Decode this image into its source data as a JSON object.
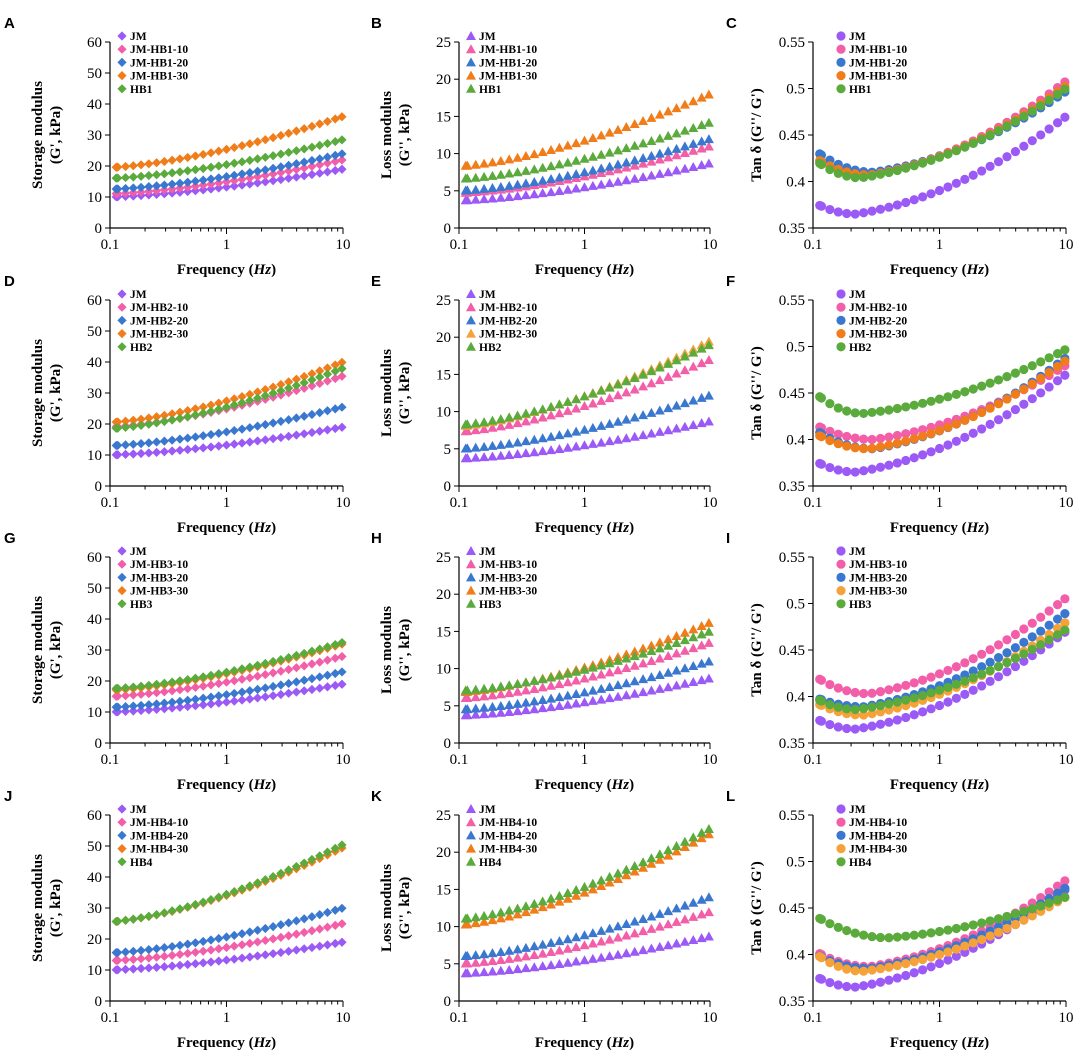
{
  "colors": {
    "JM": "#9b59f5",
    "S10": "#f25ea8",
    "S20": "#3a78d0",
    "S30": "#f07d1a",
    "HB": "#5aaa3c",
    "S30_light": "#f5a23a"
  },
  "chart_data": [
    {
      "panel": "A",
      "type": "scatter",
      "marker": "diamond",
      "xscale": "log",
      "xlim": [
        0.1,
        10
      ],
      "ylim": [
        0,
        60
      ],
      "yticks": [
        0,
        10,
        20,
        30,
        40,
        50,
        60
      ],
      "xticks": [
        "0.1",
        "1",
        "10"
      ],
      "xlabel": "Frequency (Hz)",
      "ylabel": [
        "Storage modulus",
        "(G', kPa)"
      ],
      "legend": [
        "JM",
        "JM-HB1-10",
        "JM-HB1-20",
        "JM-HB1-30",
        "HB1"
      ],
      "legend_position": "top-left",
      "series": [
        {
          "name": "JM",
          "color_key": "JM",
          "y0": 10,
          "y1": 19,
          "dip": 0,
          "minx": 0.3
        },
        {
          "name": "JM-HB1-10",
          "color_key": "S10",
          "y0": 11,
          "y1": 22,
          "dip": 0,
          "minx": 0.3
        },
        {
          "name": "JM-HB1-20",
          "color_key": "S20",
          "y0": 12.5,
          "y1": 24,
          "dip": 0,
          "minx": 0.3
        },
        {
          "name": "JM-HB1-30",
          "color_key": "S30",
          "y0": 19.5,
          "y1": 36,
          "dip": 0,
          "minx": 0.3
        },
        {
          "name": "HB1",
          "color_key": "HB",
          "y0": 16,
          "y1": 28.5,
          "dip": 0,
          "minx": 0.3
        }
      ]
    },
    {
      "panel": "B",
      "type": "scatter",
      "marker": "triangle",
      "xscale": "log",
      "xlim": [
        0.1,
        10
      ],
      "ylim": [
        0,
        25
      ],
      "yticks": [
        0,
        5,
        10,
        15,
        20,
        25
      ],
      "xticks": [
        "0.1",
        "1",
        "10"
      ],
      "xlabel": "Frequency (Hz)",
      "ylabel": [
        "Loss modulus",
        "(G'', kPa)"
      ],
      "legend": [
        "JM",
        "JM-HB1-10",
        "JM-HB1-20",
        "JM-HB1-30",
        "HB1"
      ],
      "legend_position": "top-left",
      "series": [
        {
          "name": "JM",
          "color_key": "JM",
          "y0": 3.7,
          "y1": 8.7,
          "dip": 0,
          "minx": 0.3
        },
        {
          "name": "JM-HB1-10",
          "color_key": "S10",
          "y0": 4.7,
          "y1": 11,
          "dip": 0,
          "minx": 0.3
        },
        {
          "name": "JM-HB1-20",
          "color_key": "S20",
          "y0": 5,
          "y1": 12,
          "dip": 0,
          "minx": 0.3
        },
        {
          "name": "JM-HB1-30",
          "color_key": "S30",
          "y0": 8.3,
          "y1": 18,
          "dip": 0,
          "minx": 0.3
        },
        {
          "name": "HB1",
          "color_key": "HB",
          "y0": 6.6,
          "y1": 14.2,
          "dip": 0,
          "minx": 0.3
        }
      ]
    },
    {
      "panel": "C",
      "type": "scatter",
      "marker": "circle",
      "xscale": "log",
      "xlim": [
        0.1,
        10
      ],
      "ylim": [
        0.35,
        0.55
      ],
      "yticks": [
        0.35,
        0.4,
        0.45,
        0.5,
        0.55
      ],
      "ytick_labels": [
        "0.35",
        "0.4",
        "0.45",
        "0.5",
        "0.55"
      ],
      "xticks": [
        "0.1",
        "1",
        "10"
      ],
      "xlabel": "Frequency (Hz)",
      "ylabel": [
        "Tan δ (G''/ G')"
      ],
      "legend": [
        "JM",
        "JM-HB1-10",
        "JM-HB1-20",
        "JM-HB1-30",
        "HB1"
      ],
      "legend_position": "top-left",
      "series": [
        {
          "name": "JM",
          "color_key": "JM",
          "y0": 0.378,
          "y1": 0.47,
          "dip": 0.365,
          "minx": 0.22
        },
        {
          "name": "JM-HB1-10",
          "color_key": "S10",
          "y0": 0.425,
          "y1": 0.508,
          "dip": 0.408,
          "minx": 0.3
        },
        {
          "name": "JM-HB1-20",
          "color_key": "S20",
          "y0": 0.435,
          "y1": 0.497,
          "dip": 0.41,
          "minx": 0.3
        },
        {
          "name": "JM-HB1-30",
          "color_key": "S30",
          "y0": 0.427,
          "y1": 0.503,
          "dip": 0.407,
          "minx": 0.28
        },
        {
          "name": "HB1",
          "color_key": "HB",
          "y0": 0.425,
          "y1": 0.5,
          "dip": 0.404,
          "minx": 0.24
        }
      ]
    },
    {
      "panel": "D",
      "type": "scatter",
      "marker": "diamond",
      "xscale": "log",
      "xlim": [
        0.1,
        10
      ],
      "ylim": [
        0,
        60
      ],
      "yticks": [
        0,
        10,
        20,
        30,
        40,
        50,
        60
      ],
      "xticks": [
        "0.1",
        "1",
        "10"
      ],
      "xlabel": "Frequency (Hz)",
      "ylabel": [
        "Storage modulus",
        "(G', kPa)"
      ],
      "legend": [
        "JM",
        "JM-HB2-10",
        "JM-HB2-20",
        "JM-HB2-30",
        "HB2"
      ],
      "legend_position": "top-left",
      "series": [
        {
          "name": "JM",
          "color_key": "JM",
          "y0": 10,
          "y1": 19,
          "dip": 0,
          "minx": 0.3
        },
        {
          "name": "JM-HB2-10",
          "color_key": "S10",
          "y0": 19,
          "y1": 35.5,
          "dip": 0,
          "minx": 0.3
        },
        {
          "name": "JM-HB2-20",
          "color_key": "S20",
          "y0": 13,
          "y1": 25.5,
          "dip": 0,
          "minx": 0.3
        },
        {
          "name": "JM-HB2-30",
          "color_key": "S30",
          "y0": 20.5,
          "y1": 40,
          "dip": 0,
          "minx": 0.3
        },
        {
          "name": "HB2",
          "color_key": "HB",
          "y0": 18.5,
          "y1": 38,
          "dip": 0,
          "minx": 0.3
        }
      ]
    },
    {
      "panel": "E",
      "type": "scatter",
      "marker": "triangle",
      "xscale": "log",
      "xlim": [
        0.1,
        10
      ],
      "ylim": [
        0,
        25
      ],
      "yticks": [
        0,
        5,
        10,
        15,
        20,
        25
      ],
      "xticks": [
        "0.1",
        "1",
        "10"
      ],
      "xlabel": "Frequency (Hz)",
      "ylabel": [
        "Loss modulus",
        "(G'', kPa)"
      ],
      "legend": [
        "JM",
        "JM-HB2-10",
        "JM-HB2-20",
        "JM-HB2-30",
        "HB2"
      ],
      "legend_position": "top-left",
      "series": [
        {
          "name": "JM",
          "color_key": "JM",
          "y0": 3.7,
          "y1": 8.7,
          "dip": 0,
          "minx": 0.3
        },
        {
          "name": "JM-HB2-10",
          "color_key": "S10",
          "y0": 7.3,
          "y1": 17,
          "dip": 0,
          "minx": 0.3
        },
        {
          "name": "JM-HB2-20",
          "color_key": "S20",
          "y0": 5,
          "y1": 12.2,
          "dip": 0,
          "minx": 0.3
        },
        {
          "name": "JM-HB2-30",
          "color_key": "S30_light",
          "y0": 8,
          "y1": 19.5,
          "dip": 0,
          "minx": 0.3
        },
        {
          "name": "HB2",
          "color_key": "HB",
          "y0": 8.2,
          "y1": 19,
          "dip": 0,
          "minx": 0.3
        }
      ]
    },
    {
      "panel": "F",
      "type": "scatter",
      "marker": "circle",
      "xscale": "log",
      "xlim": [
        0.1,
        10
      ],
      "ylim": [
        0.35,
        0.55
      ],
      "yticks": [
        0.35,
        0.4,
        0.45,
        0.5,
        0.55
      ],
      "ytick_labels": [
        "0.35",
        "0.4",
        "0.45",
        "0.5",
        "0.55"
      ],
      "xticks": [
        "0.1",
        "1",
        "10"
      ],
      "xlabel": "Frequency (Hz)",
      "ylabel": [
        "Tan δ (G''/ G')"
      ],
      "legend": [
        "JM",
        "JM-HB2-10",
        "JM-HB2-20",
        "JM-HB2-30",
        "HB2"
      ],
      "legend_position": "top-left",
      "series": [
        {
          "name": "JM",
          "color_key": "JM",
          "y0": 0.378,
          "y1": 0.47,
          "dip": 0.365,
          "minx": 0.22
        },
        {
          "name": "JM-HB2-10",
          "color_key": "S10",
          "y0": 0.417,
          "y1": 0.48,
          "dip": 0.4,
          "minx": 0.3
        },
        {
          "name": "JM-HB2-20",
          "color_key": "S20",
          "y0": 0.412,
          "y1": 0.488,
          "dip": 0.39,
          "minx": 0.3
        },
        {
          "name": "JM-HB2-30",
          "color_key": "S30",
          "y0": 0.408,
          "y1": 0.485,
          "dip": 0.39,
          "minx": 0.28
        },
        {
          "name": "HB2",
          "color_key": "HB",
          "y0": 0.452,
          "y1": 0.497,
          "dip": 0.428,
          "minx": 0.25
        }
      ]
    },
    {
      "panel": "G",
      "type": "scatter",
      "marker": "diamond",
      "xscale": "log",
      "xlim": [
        0.1,
        10
      ],
      "ylim": [
        0,
        60
      ],
      "yticks": [
        0,
        10,
        20,
        30,
        40,
        50,
        60
      ],
      "xticks": [
        "0.1",
        "1",
        "10"
      ],
      "xlabel": "Frequency (Hz)",
      "ylabel": [
        "Storage modulus",
        "(G', kPa)"
      ],
      "legend": [
        "JM",
        "JM-HB3-10",
        "JM-HB3-20",
        "JM-HB3-30",
        "HB3"
      ],
      "legend_position": "top-left",
      "series": [
        {
          "name": "JM",
          "color_key": "JM",
          "y0": 10,
          "y1": 19,
          "dip": 0,
          "minx": 0.3
        },
        {
          "name": "JM-HB3-10",
          "color_key": "S10",
          "y0": 15,
          "y1": 28,
          "dip": 0,
          "minx": 0.3
        },
        {
          "name": "JM-HB3-20",
          "color_key": "S20",
          "y0": 11.5,
          "y1": 23,
          "dip": 0,
          "minx": 0.3
        },
        {
          "name": "JM-HB3-30",
          "color_key": "S30",
          "y0": 17,
          "y1": 32,
          "dip": 0,
          "minx": 0.3
        },
        {
          "name": "HB3",
          "color_key": "HB",
          "y0": 17.5,
          "y1": 32.5,
          "dip": 0,
          "minx": 0.3
        }
      ]
    },
    {
      "panel": "H",
      "type": "scatter",
      "marker": "triangle",
      "xscale": "log",
      "xlim": [
        0.1,
        10
      ],
      "ylim": [
        0,
        25
      ],
      "yticks": [
        0,
        5,
        10,
        15,
        20,
        25
      ],
      "xticks": [
        "0.1",
        "1",
        "10"
      ],
      "xlabel": "Frequency (Hz)",
      "ylabel": [
        "Loss modulus",
        "(G'', kPa)"
      ],
      "legend": [
        "JM",
        "JM-HB3-10",
        "JM-HB3-20",
        "JM-HB3-30",
        "HB3"
      ],
      "legend_position": "top-left",
      "series": [
        {
          "name": "JM",
          "color_key": "JM",
          "y0": 3.7,
          "y1": 8.7,
          "dip": 0,
          "minx": 0.3
        },
        {
          "name": "JM-HB3-10",
          "color_key": "S10",
          "y0": 6,
          "y1": 13.5,
          "dip": 0,
          "minx": 0.3
        },
        {
          "name": "JM-HB3-20",
          "color_key": "S20",
          "y0": 4.5,
          "y1": 11,
          "dip": 0,
          "minx": 0.3
        },
        {
          "name": "JM-HB3-30",
          "color_key": "S30",
          "y0": 6.8,
          "y1": 16.2,
          "dip": 0,
          "minx": 0.3
        },
        {
          "name": "HB3",
          "color_key": "HB",
          "y0": 7,
          "y1": 15,
          "dip": 0,
          "minx": 0.3
        }
      ]
    },
    {
      "panel": "I",
      "type": "scatter",
      "marker": "circle",
      "xscale": "log",
      "xlim": [
        0.1,
        10
      ],
      "ylim": [
        0.35,
        0.55
      ],
      "yticks": [
        0.35,
        0.4,
        0.45,
        0.5,
        0.55
      ],
      "ytick_labels": [
        "0.35",
        "0.4",
        "0.45",
        "0.5",
        "0.55"
      ],
      "xticks": [
        "0.1",
        "1",
        "10"
      ],
      "xlabel": "Frequency (Hz)",
      "ylabel": [
        "Tan δ (G''/ G')"
      ],
      "legend": [
        "JM",
        "JM-HB3-10",
        "JM-HB3-20",
        "JM-HB3-30",
        "HB3"
      ],
      "legend_position": "top-left",
      "series": [
        {
          "name": "JM",
          "color_key": "JM",
          "y0": 0.378,
          "y1": 0.47,
          "dip": 0.365,
          "minx": 0.22
        },
        {
          "name": "JM-HB3-10",
          "color_key": "S10",
          "y0": 0.423,
          "y1": 0.506,
          "dip": 0.403,
          "minx": 0.28
        },
        {
          "name": "JM-HB3-20",
          "color_key": "S20",
          "y0": 0.4,
          "y1": 0.49,
          "dip": 0.389,
          "minx": 0.25
        },
        {
          "name": "JM-HB3-30",
          "color_key": "S30_light",
          "y0": 0.395,
          "y1": 0.48,
          "dip": 0.38,
          "minx": 0.25
        },
        {
          "name": "HB3",
          "color_key": "HB",
          "y0": 0.4,
          "y1": 0.472,
          "dip": 0.386,
          "minx": 0.22
        }
      ]
    },
    {
      "panel": "J",
      "type": "scatter",
      "marker": "diamond",
      "xscale": "log",
      "xlim": [
        0.1,
        10
      ],
      "ylim": [
        0,
        60
      ],
      "yticks": [
        0,
        10,
        20,
        30,
        40,
        50,
        60
      ],
      "xticks": [
        "0.1",
        "1",
        "10"
      ],
      "xlabel": "Frequency (Hz)",
      "ylabel": [
        "Storage modulus",
        "(G', kPa)"
      ],
      "legend": [
        "JM",
        "JM-HB4-10",
        "JM-HB4-20",
        "JM-HB4-30",
        "HB4"
      ],
      "legend_position": "top-left",
      "series": [
        {
          "name": "JM",
          "color_key": "JM",
          "y0": 10,
          "y1": 19,
          "dip": 0,
          "minx": 0.3
        },
        {
          "name": "JM-HB4-10",
          "color_key": "S10",
          "y0": 13,
          "y1": 25,
          "dip": 0,
          "minx": 0.3
        },
        {
          "name": "JM-HB4-20",
          "color_key": "S20",
          "y0": 15.5,
          "y1": 30,
          "dip": 0,
          "minx": 0.3
        },
        {
          "name": "JM-HB4-30",
          "color_key": "S30",
          "y0": 25.5,
          "y1": 49.5,
          "dip": 0,
          "minx": 0.3
        },
        {
          "name": "HB4",
          "color_key": "HB",
          "y0": 25.5,
          "y1": 50.5,
          "dip": 0,
          "minx": 0.3
        }
      ]
    },
    {
      "panel": "K",
      "type": "scatter",
      "marker": "triangle",
      "xscale": "log",
      "xlim": [
        0.1,
        10
      ],
      "ylim": [
        0,
        25
      ],
      "yticks": [
        0,
        5,
        10,
        15,
        20,
        25
      ],
      "xticks": [
        "0.1",
        "1",
        "10"
      ],
      "xlabel": "Frequency (Hz)",
      "ylabel": [
        "Loss modulus",
        "(G'', kPa)"
      ],
      "legend": [
        "JM",
        "JM-HB4-10",
        "JM-HB4-20",
        "JM-HB4-30",
        "HB4"
      ],
      "legend_position": "top-left",
      "series": [
        {
          "name": "JM",
          "color_key": "JM",
          "y0": 3.7,
          "y1": 8.7,
          "dip": 0,
          "minx": 0.3
        },
        {
          "name": "JM-HB4-10",
          "color_key": "S10",
          "y0": 5,
          "y1": 12,
          "dip": 0,
          "minx": 0.3
        },
        {
          "name": "JM-HB4-20",
          "color_key": "S20",
          "y0": 6,
          "y1": 14,
          "dip": 0,
          "minx": 0.3
        },
        {
          "name": "JM-HB4-30",
          "color_key": "S30",
          "y0": 10.2,
          "y1": 22.5,
          "dip": 0,
          "minx": 0.3
        },
        {
          "name": "HB4",
          "color_key": "HB",
          "y0": 11,
          "y1": 23.2,
          "dip": 0,
          "minx": 0.3
        }
      ]
    },
    {
      "panel": "L",
      "type": "scatter",
      "marker": "circle",
      "xscale": "log",
      "xlim": [
        0.1,
        10
      ],
      "ylim": [
        0.35,
        0.55
      ],
      "yticks": [
        0.35,
        0.4,
        0.45,
        0.5,
        0.55
      ],
      "ytick_labels": [
        "0.35",
        "0.4",
        "0.45",
        "0.5",
        "0.55"
      ],
      "xticks": [
        "0.1",
        "1",
        "10"
      ],
      "xlabel": "Frequency (Hz)",
      "ylabel": [
        "Tan δ (G''/ G')"
      ],
      "legend": [
        "JM",
        "JM-HB4-10",
        "JM-HB4-20",
        "JM-HB4-30",
        "HB4"
      ],
      "legend_position": "top-left",
      "series": [
        {
          "name": "JM",
          "color_key": "JM",
          "y0": 0.378,
          "y1": 0.47,
          "dip": 0.365,
          "minx": 0.22
        },
        {
          "name": "JM-HB4-10",
          "color_key": "S10",
          "y0": 0.405,
          "y1": 0.48,
          "dip": 0.387,
          "minx": 0.28
        },
        {
          "name": "JM-HB4-20",
          "color_key": "S20",
          "y0": 0.402,
          "y1": 0.472,
          "dip": 0.385,
          "minx": 0.28
        },
        {
          "name": "JM-HB4-30",
          "color_key": "S30_light",
          "y0": 0.403,
          "y1": 0.462,
          "dip": 0.382,
          "minx": 0.25
        },
        {
          "name": "HB4",
          "color_key": "HB",
          "y0": 0.443,
          "y1": 0.462,
          "dip": 0.418,
          "minx": 0.4
        }
      ]
    }
  ]
}
